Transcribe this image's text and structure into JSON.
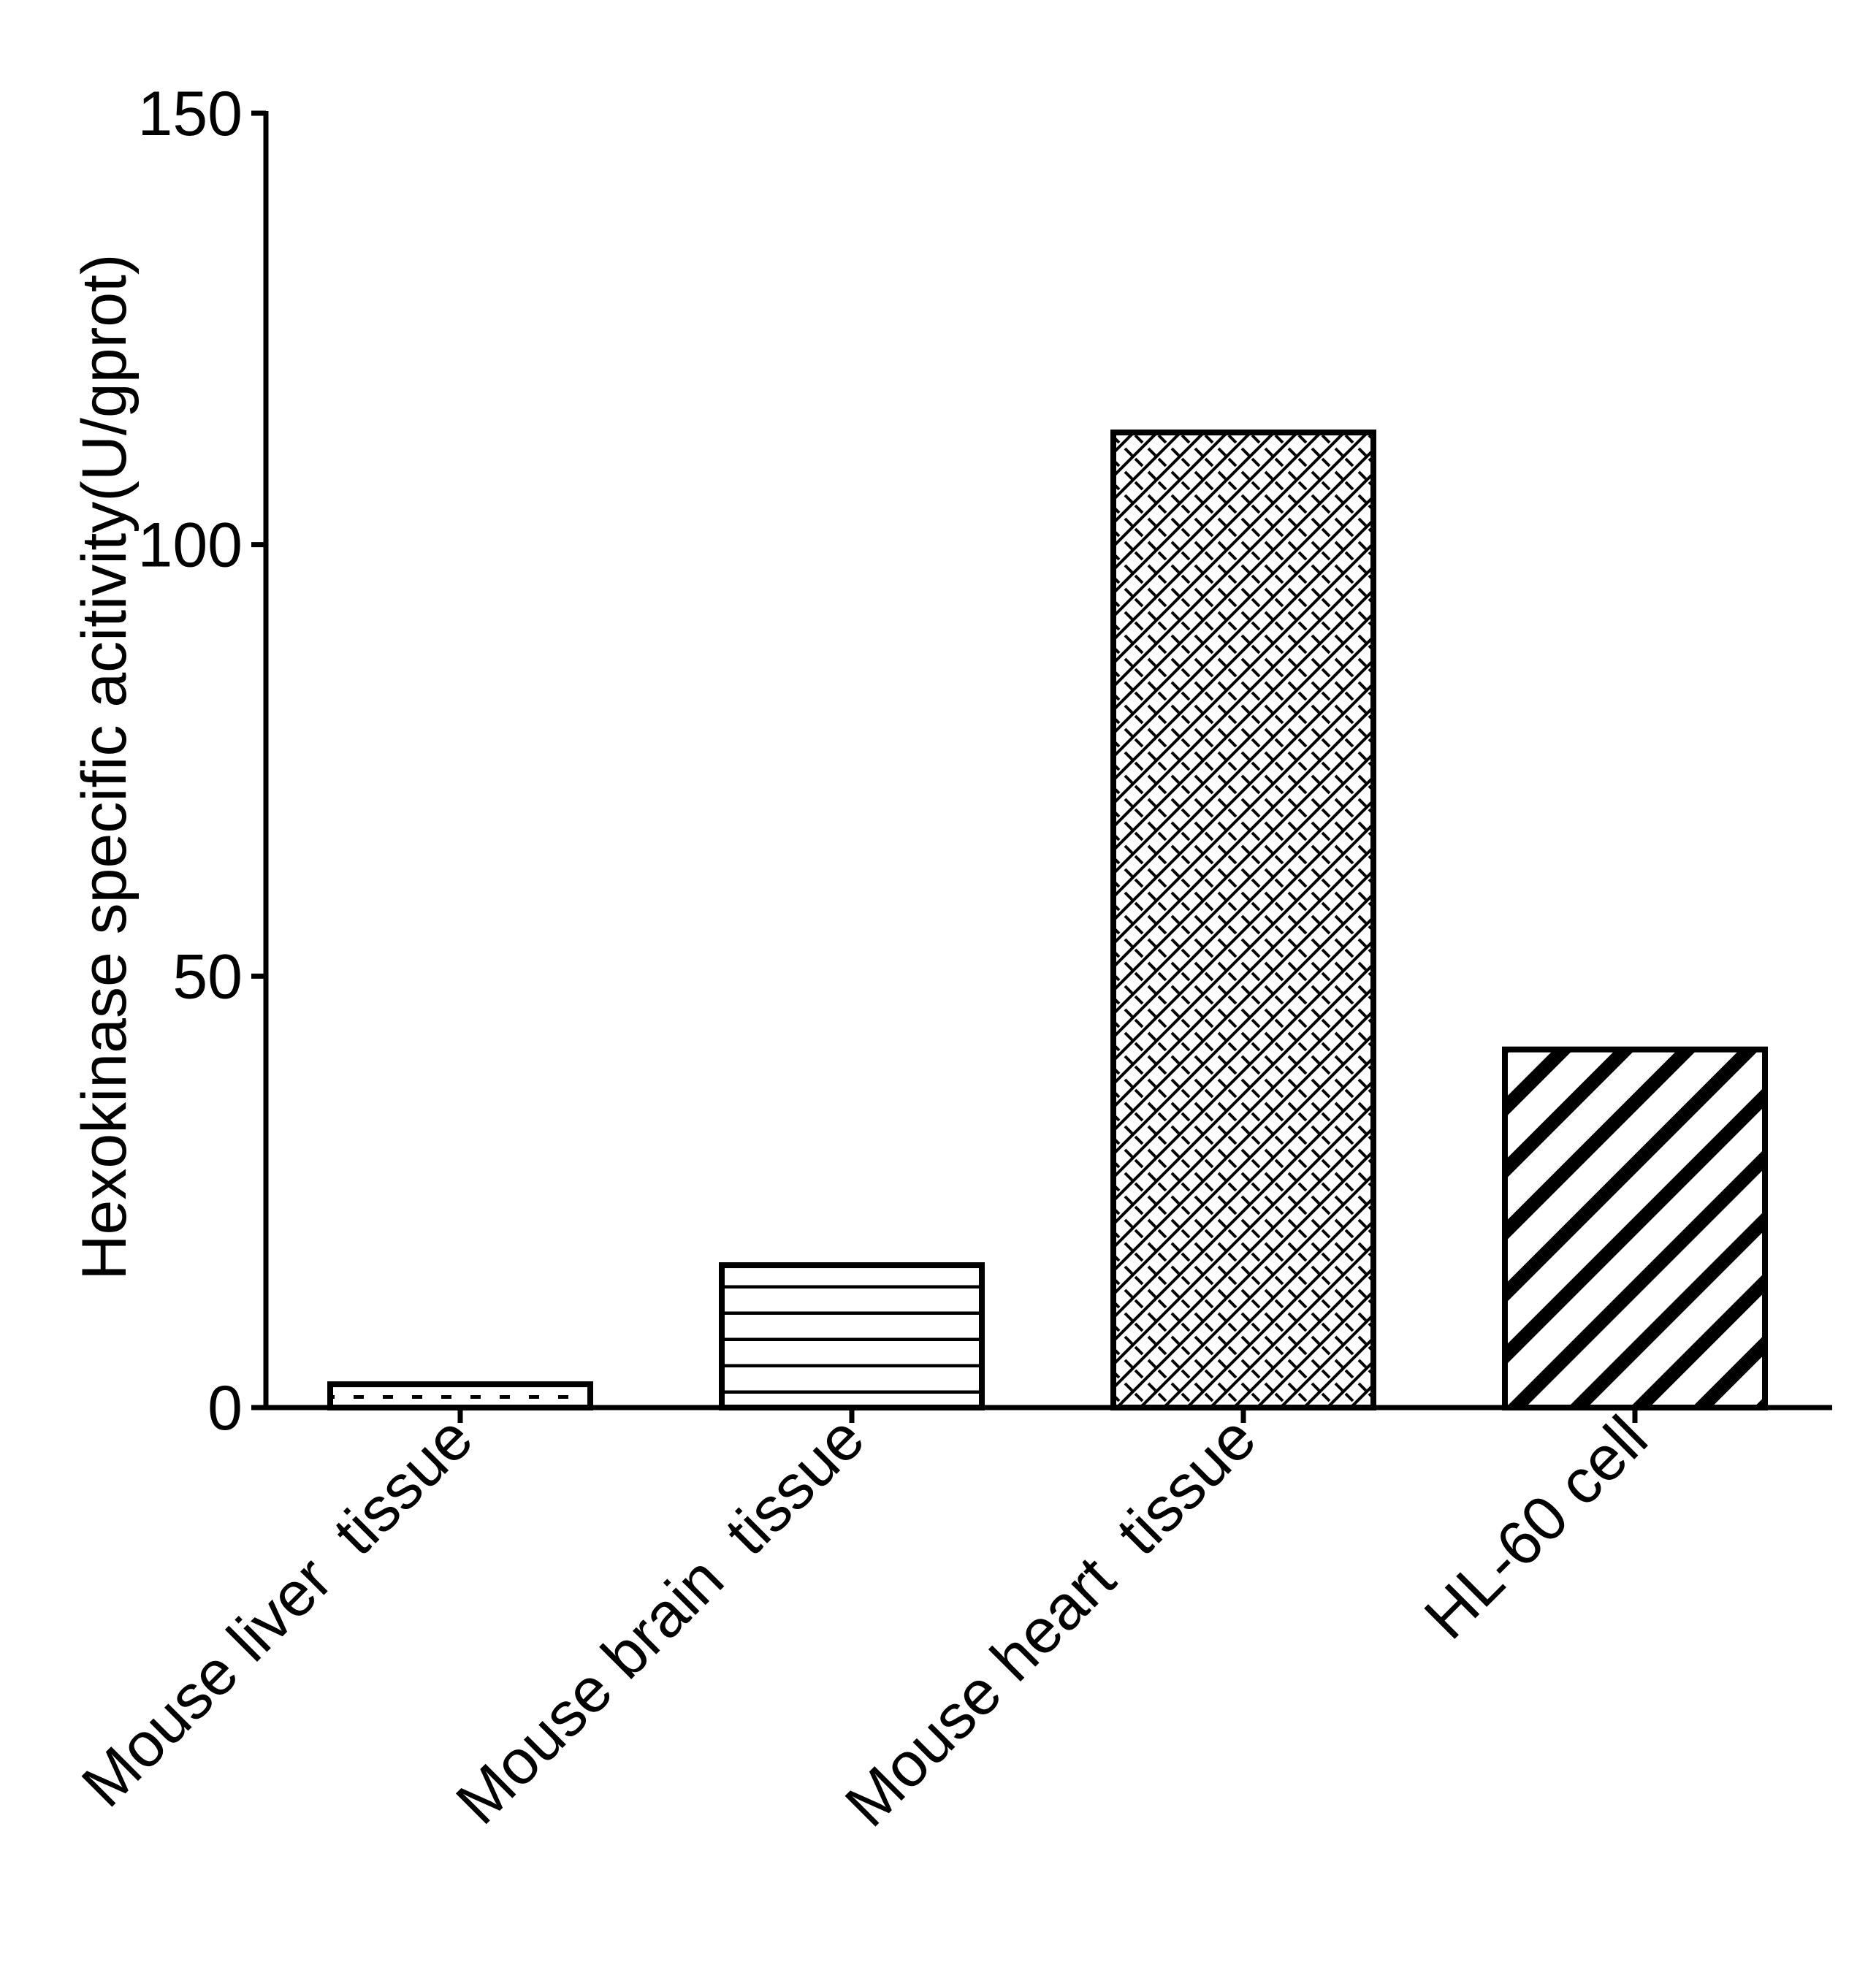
{
  "chart_data": {
    "type": "bar",
    "title": "",
    "xlabel": "",
    "ylabel": "Hexokinase specific acitivity(U/gprot)",
    "ylim": [
      0,
      150
    ],
    "yticks": [
      "0",
      "50",
      "100",
      "150"
    ],
    "grid": false,
    "categories": [
      "Mouse liver  tissue",
      "Mouse brain  tissue",
      "Mouse heart  tissue",
      "HL-60 cell"
    ],
    "values": [
      2.7,
      16.5,
      113.0,
      41.5
    ],
    "patterns": [
      "dotted",
      "horizontal-lines",
      "brick-crosshatch",
      "diagonal-stripes"
    ],
    "colors": {
      "stroke": "#000000",
      "fill": "#ffffff"
    }
  }
}
